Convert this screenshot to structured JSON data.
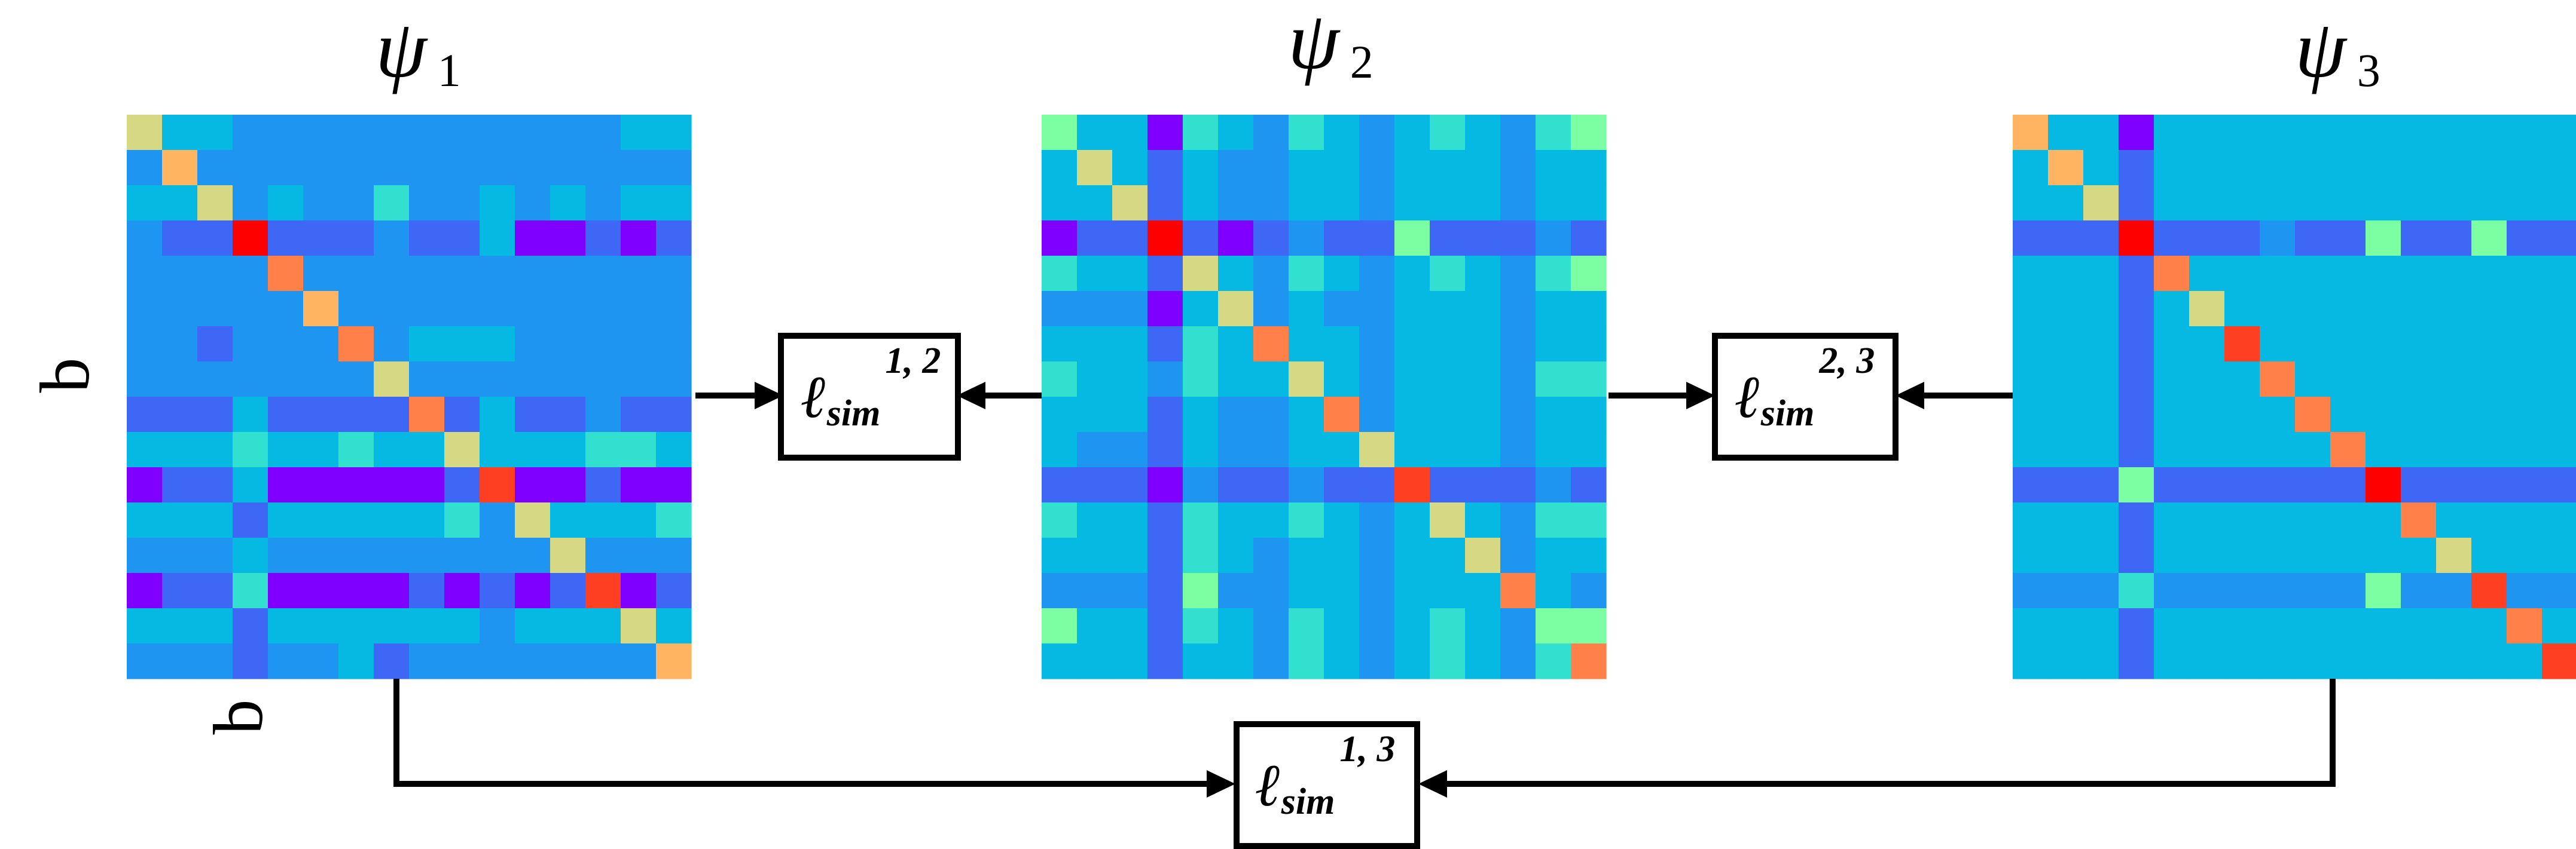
{
  "labels": {
    "psi_symbol": "ψ",
    "psi_subscripts": [
      "1",
      "2",
      "3"
    ],
    "axis_vertical": "b",
    "axis_horizontal": "b"
  },
  "losses": [
    {
      "main": "ℓ",
      "sub": "sim",
      "sup": "1, 2"
    },
    {
      "main": "ℓ",
      "sub": "sim",
      "sup": "2, 3"
    },
    {
      "main": "ℓ",
      "sub": "sim",
      "sup": "1, 3"
    }
  ],
  "colors": {
    "palette": [
      "#8000ff",
      "#3f67f5",
      "#1e96f1",
      "#05b9e2",
      "#31e0ce",
      "#7cfea2",
      "#d6d884",
      "#ffb462",
      "#ff8048",
      "#ff3f21",
      "#ff0000"
    ],
    "line": "#000000",
    "box_fill": "#ffffff"
  },
  "matrices": [
    {
      "name": "psi-1",
      "values": [
        [
          6,
          3,
          3,
          2,
          2,
          2,
          2,
          2,
          2,
          2,
          2,
          2,
          2,
          2,
          3,
          3
        ],
        [
          2,
          7,
          2,
          2,
          2,
          2,
          2,
          2,
          2,
          2,
          2,
          2,
          2,
          2,
          2,
          2
        ],
        [
          3,
          3,
          6,
          2,
          3,
          2,
          2,
          4,
          2,
          2,
          3,
          2,
          3,
          2,
          3,
          3
        ],
        [
          2,
          1,
          1,
          10,
          1,
          1,
          1,
          2,
          1,
          1,
          3,
          0,
          0,
          1,
          0,
          1
        ],
        [
          2,
          2,
          2,
          2,
          8,
          2,
          2,
          2,
          2,
          2,
          2,
          2,
          2,
          2,
          2,
          2
        ],
        [
          2,
          2,
          2,
          2,
          2,
          7,
          2,
          2,
          2,
          2,
          2,
          2,
          2,
          2,
          2,
          2
        ],
        [
          2,
          2,
          1,
          2,
          2,
          2,
          8,
          2,
          3,
          3,
          3,
          2,
          2,
          2,
          2,
          2
        ],
        [
          2,
          2,
          2,
          2,
          2,
          2,
          2,
          6,
          2,
          2,
          2,
          2,
          2,
          2,
          2,
          2
        ],
        [
          1,
          1,
          1,
          3,
          1,
          1,
          1,
          1,
          8,
          1,
          3,
          1,
          1,
          2,
          1,
          1
        ],
        [
          3,
          3,
          3,
          4,
          3,
          3,
          4,
          3,
          3,
          6,
          3,
          3,
          3,
          4,
          4,
          3
        ],
        [
          0,
          1,
          1,
          3,
          0,
          0,
          0,
          0,
          0,
          1,
          9,
          0,
          0,
          1,
          0,
          0
        ],
        [
          3,
          3,
          3,
          1,
          3,
          3,
          3,
          3,
          3,
          4,
          2,
          6,
          3,
          3,
          3,
          4
        ],
        [
          2,
          2,
          2,
          3,
          2,
          2,
          2,
          2,
          2,
          2,
          2,
          2,
          6,
          2,
          2,
          2
        ],
        [
          0,
          1,
          1,
          4,
          0,
          0,
          0,
          0,
          1,
          0,
          1,
          0,
          1,
          9,
          0,
          1
        ],
        [
          3,
          3,
          3,
          1,
          3,
          3,
          3,
          3,
          3,
          3,
          2,
          3,
          3,
          3,
          6,
          3
        ],
        [
          2,
          2,
          2,
          1,
          2,
          2,
          3,
          1,
          2,
          2,
          2,
          2,
          2,
          2,
          2,
          7
        ]
      ]
    },
    {
      "name": "psi-2",
      "values": [
        [
          5,
          3,
          3,
          0,
          4,
          3,
          2,
          4,
          3,
          2,
          3,
          4,
          3,
          2,
          4,
          5
        ],
        [
          3,
          6,
          3,
          1,
          3,
          2,
          2,
          3,
          3,
          2,
          3,
          3,
          3,
          2,
          3,
          3
        ],
        [
          3,
          3,
          6,
          1,
          3,
          2,
          2,
          3,
          3,
          2,
          3,
          3,
          3,
          2,
          3,
          3
        ],
        [
          0,
          1,
          1,
          10,
          1,
          0,
          1,
          2,
          1,
          1,
          5,
          1,
          1,
          1,
          2,
          1
        ],
        [
          4,
          3,
          3,
          1,
          6,
          3,
          2,
          4,
          3,
          2,
          3,
          4,
          3,
          2,
          4,
          5
        ],
        [
          2,
          2,
          2,
          0,
          3,
          6,
          2,
          3,
          2,
          2,
          3,
          3,
          3,
          2,
          3,
          3
        ],
        [
          3,
          3,
          3,
          1,
          4,
          3,
          8,
          3,
          3,
          2,
          3,
          3,
          3,
          2,
          3,
          3
        ],
        [
          4,
          3,
          3,
          2,
          4,
          3,
          3,
          6,
          3,
          2,
          3,
          3,
          3,
          2,
          4,
          4
        ],
        [
          3,
          3,
          3,
          1,
          3,
          2,
          2,
          3,
          8,
          2,
          3,
          3,
          3,
          2,
          3,
          3
        ],
        [
          3,
          2,
          2,
          1,
          3,
          2,
          2,
          3,
          3,
          6,
          3,
          3,
          3,
          2,
          3,
          3
        ],
        [
          1,
          1,
          1,
          0,
          2,
          1,
          1,
          2,
          1,
          1,
          9,
          1,
          1,
          1,
          2,
          1
        ],
        [
          4,
          3,
          3,
          1,
          4,
          3,
          3,
          4,
          3,
          2,
          3,
          6,
          3,
          2,
          4,
          4
        ],
        [
          3,
          3,
          3,
          1,
          4,
          3,
          2,
          3,
          3,
          2,
          3,
          3,
          6,
          2,
          3,
          3
        ],
        [
          2,
          2,
          2,
          1,
          5,
          2,
          2,
          3,
          3,
          2,
          3,
          3,
          3,
          8,
          3,
          2
        ],
        [
          5,
          3,
          3,
          1,
          4,
          3,
          2,
          4,
          3,
          2,
          3,
          4,
          3,
          2,
          5,
          5
        ],
        [
          3,
          3,
          3,
          1,
          3,
          3,
          2,
          4,
          3,
          2,
          3,
          4,
          3,
          2,
          4,
          8
        ]
      ]
    },
    {
      "name": "psi-3",
      "values": [
        [
          7,
          3,
          3,
          0,
          3,
          3,
          3,
          3,
          3,
          3,
          3,
          3,
          3,
          3,
          3,
          3
        ],
        [
          3,
          7,
          3,
          1,
          3,
          3,
          3,
          3,
          3,
          3,
          3,
          3,
          3,
          3,
          3,
          3
        ],
        [
          3,
          3,
          6,
          1,
          3,
          3,
          3,
          3,
          3,
          3,
          3,
          3,
          3,
          3,
          3,
          3
        ],
        [
          1,
          1,
          1,
          10,
          1,
          1,
          1,
          2,
          1,
          1,
          5,
          1,
          1,
          5,
          1,
          1
        ],
        [
          3,
          3,
          3,
          1,
          8,
          3,
          3,
          3,
          3,
          3,
          3,
          3,
          3,
          3,
          3,
          3
        ],
        [
          3,
          3,
          3,
          1,
          3,
          6,
          3,
          3,
          3,
          3,
          3,
          3,
          3,
          3,
          3,
          3
        ],
        [
          3,
          3,
          3,
          1,
          3,
          3,
          9,
          3,
          3,
          3,
          3,
          3,
          3,
          3,
          3,
          3
        ],
        [
          3,
          3,
          3,
          1,
          3,
          3,
          3,
          8,
          3,
          3,
          3,
          3,
          3,
          3,
          3,
          3
        ],
        [
          3,
          3,
          3,
          1,
          3,
          3,
          3,
          3,
          8,
          3,
          3,
          3,
          3,
          3,
          3,
          3
        ],
        [
          3,
          3,
          3,
          1,
          3,
          3,
          3,
          3,
          3,
          8,
          3,
          3,
          3,
          3,
          3,
          3
        ],
        [
          1,
          1,
          1,
          5,
          1,
          1,
          1,
          1,
          1,
          1,
          10,
          1,
          1,
          1,
          1,
          1
        ],
        [
          3,
          3,
          3,
          1,
          3,
          3,
          3,
          3,
          3,
          3,
          3,
          8,
          3,
          3,
          3,
          3
        ],
        [
          3,
          3,
          3,
          1,
          3,
          3,
          3,
          3,
          3,
          3,
          3,
          3,
          6,
          3,
          3,
          3
        ],
        [
          2,
          2,
          2,
          4,
          2,
          2,
          2,
          2,
          2,
          2,
          5,
          2,
          2,
          9,
          2,
          2
        ],
        [
          3,
          3,
          3,
          1,
          3,
          3,
          3,
          3,
          3,
          3,
          3,
          3,
          3,
          3,
          8,
          3
        ],
        [
          3,
          3,
          3,
          1,
          3,
          3,
          3,
          3,
          3,
          3,
          3,
          3,
          3,
          3,
          3,
          9
        ]
      ]
    }
  ]
}
